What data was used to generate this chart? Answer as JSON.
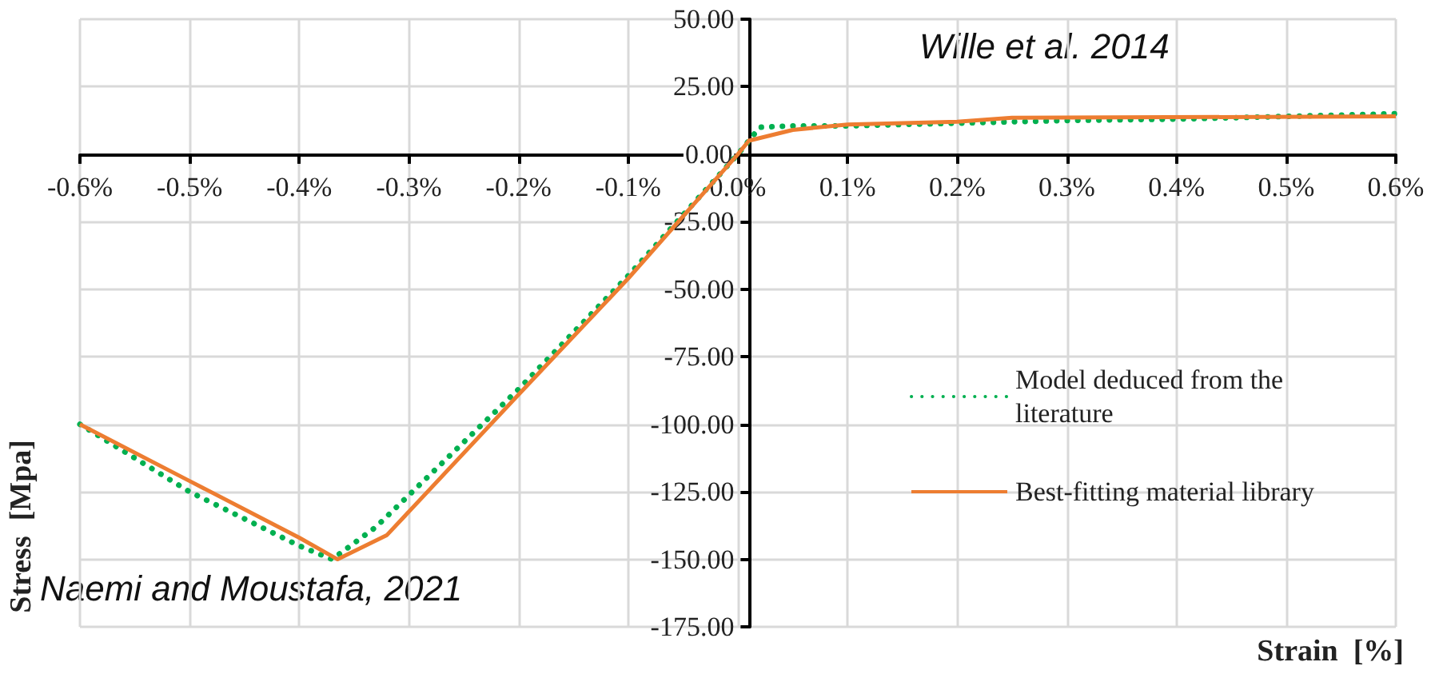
{
  "chart_data": {
    "type": "line",
    "xlabel": "Strain  [%]",
    "ylabel": "Stress  [Mpa]",
    "annotations": [
      "Wille et al. 2014",
      "Naemi and Moustafa, 2021"
    ],
    "series": [
      {
        "name": "Model deduced from the literature",
        "color": "#00b050",
        "line_style": "dotted",
        "x": [
          -0.6,
          -0.5,
          -0.4,
          -0.37,
          -0.33,
          -0.2,
          -0.1,
          0,
          0.01,
          0.02,
          0.05,
          0.1,
          0.2,
          0.3,
          0.4,
          0.6
        ],
        "values": [
          -100,
          -125,
          -145,
          -150,
          -138,
          -87,
          -45,
          0,
          5,
          10,
          10.5,
          10.5,
          11.5,
          12.5,
          13,
          15
        ]
      },
      {
        "name": "Best-fitting material library",
        "color": "#ed7d31",
        "line_style": "solid",
        "x": [
          -0.6,
          -0.5,
          -0.4,
          -0.365,
          -0.32,
          -0.2,
          -0.1,
          0,
          0.01,
          0.05,
          0.1,
          0.2,
          0.25,
          0.6
        ],
        "values": [
          -100,
          -121,
          -142,
          -150,
          -141,
          -89,
          -46,
          0,
          5,
          9,
          11,
          12,
          13.5,
          14
        ]
      }
    ],
    "xlim": [
      -0.6,
      0.6
    ],
    "xticks": [
      {
        "value": -0.6,
        "label": "-0.6%"
      },
      {
        "value": -0.5,
        "label": "-0.5%"
      },
      {
        "value": -0.4,
        "label": "-0.4%"
      },
      {
        "value": -0.3,
        "label": "-0.3%"
      },
      {
        "value": -0.2,
        "label": "-0.2%"
      },
      {
        "value": -0.1,
        "label": "-0.1%"
      },
      {
        "value": 0,
        "label": "0.0%"
      },
      {
        "value": 0.1,
        "label": "0.1%"
      },
      {
        "value": 0.2,
        "label": "0.2%"
      },
      {
        "value": 0.3,
        "label": "0.3%"
      },
      {
        "value": 0.4,
        "label": "0.4%"
      },
      {
        "value": 0.5,
        "label": "0.5%"
      },
      {
        "value": 0.6,
        "label": "0.6%"
      }
    ],
    "ylim": [
      -175,
      50
    ],
    "yticks": [
      {
        "value": -175,
        "label": "-175.00"
      },
      {
        "value": -150,
        "label": "-150.00"
      },
      {
        "value": -125,
        "label": "-125.00"
      },
      {
        "value": -100,
        "label": "-100.00"
      },
      {
        "value": -75,
        "label": "-75.00"
      },
      {
        "value": -50,
        "label": "-50.00"
      },
      {
        "value": -25,
        "label": "-25.00"
      },
      {
        "value": 0,
        "label": "0.00"
      },
      {
        "value": 25,
        "label": "25.00"
      },
      {
        "value": 50,
        "label": "50.00"
      }
    ],
    "grid": true,
    "legend": "bottom right",
    "marker": "none"
  }
}
